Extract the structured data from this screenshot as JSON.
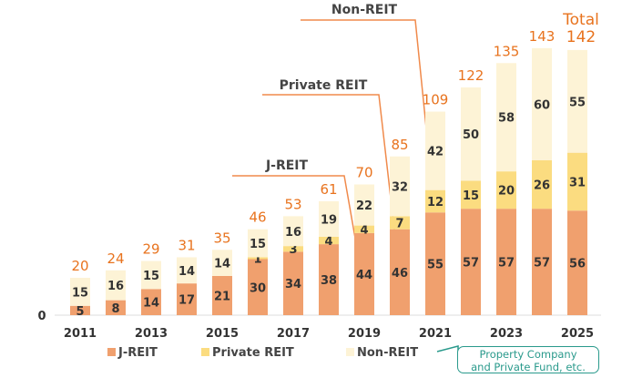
{
  "chart_data": {
    "type": "bar",
    "stacked": true,
    "categories": [
      "2011",
      "2012",
      "2013",
      "2014",
      "2015",
      "2016",
      "2017",
      "2018",
      "2019",
      "2020",
      "2021",
      "2022",
      "2023",
      "2024",
      "2025"
    ],
    "x_tick_labels": [
      "2011",
      "2013",
      "2015",
      "2017",
      "2019",
      "2021",
      "2023",
      "2025"
    ],
    "series": [
      {
        "name": "J-REIT",
        "color": "#f0a06e",
        "values": [
          5,
          8,
          14,
          17,
          21,
          30,
          34,
          38,
          44,
          46,
          55,
          57,
          57,
          57,
          56
        ]
      },
      {
        "name": "Private REIT",
        "color": "#fbdc80",
        "values": [
          0,
          0,
          0,
          0,
          0,
          1,
          3,
          4,
          4,
          7,
          12,
          15,
          20,
          26,
          31
        ]
      },
      {
        "name": "Non-REIT",
        "color": "#fdf3d6",
        "values": [
          15,
          16,
          15,
          14,
          14,
          15,
          16,
          19,
          22,
          32,
          42,
          50,
          58,
          60,
          55
        ]
      }
    ],
    "totals": [
      20,
      24,
      29,
      31,
      35,
      46,
      53,
      61,
      70,
      85,
      109,
      122,
      135,
      143,
      142
    ],
    "total_label": "Total",
    "zero_label": "0",
    "total_color": "#e8731e",
    "annotations": {
      "j_reit": "J-REIT",
      "private_reit": "Private REIT",
      "non_reit": "Non-REIT"
    },
    "legend": {
      "placement": "bottom",
      "non_reit_note": "Property Company and Private Fund, etc.",
      "note_lines": [
        "Property Company",
        "and Private Fund, etc."
      ]
    },
    "ylim": [
      0,
      145
    ],
    "grid": false
  }
}
